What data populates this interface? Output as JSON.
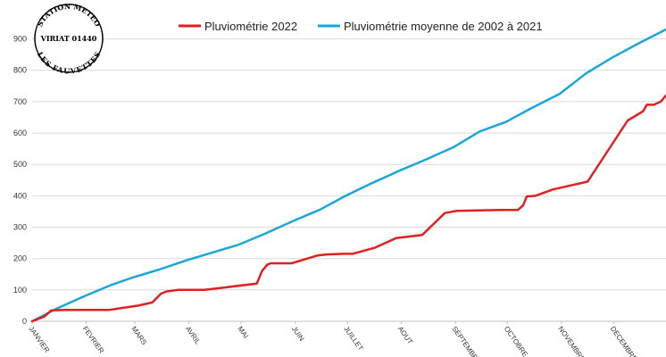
{
  "chart_data": {
    "type": "line",
    "title": "",
    "xlabel": "",
    "ylabel": "",
    "x_ticks": [
      "JANVIER",
      "FEVRIER",
      "MARS",
      "AVRIL",
      "MAI",
      "JUIN",
      "JUILLET",
      "AOUT",
      "SEPTEMBRE",
      "OCTOBRE",
      "NOVEMBRE",
      "DECEMBRE"
    ],
    "ylim": [
      0,
      950
    ],
    "yticks": [
      0,
      100,
      200,
      300,
      400,
      500,
      600,
      700,
      800,
      900
    ],
    "grid": "horizontal",
    "legend_position": "top",
    "series": [
      {
        "name": "Pluviométrie 2022",
        "color": "#e02020",
        "x": [
          1,
          8,
          12,
          20,
          45,
          62,
          70,
          75,
          78,
          85,
          92,
          100,
          130,
          133,
          136,
          138,
          150,
          165,
          170,
          180,
          185,
          198,
          210,
          225,
          238,
          245,
          270,
          280,
          283,
          285,
          290,
          300,
          320,
          343,
          349,
          352,
          354,
          358,
          362,
          365
        ],
        "y": [
          0,
          15,
          35,
          36,
          36,
          50,
          60,
          88,
          95,
          100,
          100,
          100,
          120,
          160,
          180,
          185,
          185,
          210,
          213,
          215,
          215,
          235,
          265,
          275,
          345,
          352,
          355,
          355,
          370,
          398,
          400,
          420,
          445,
          640,
          660,
          670,
          690,
          690,
          700,
          720
        ]
      },
      {
        "name": "Pluviométrie moyenne de 2002 à 2021",
        "color": "#1ba6d9",
        "x": [
          1,
          15,
          31,
          46,
          59,
          74,
          90,
          105,
          120,
          135,
          151,
          166,
          181,
          196,
          212,
          227,
          243,
          258,
          273,
          288,
          304,
          319,
          334,
          349,
          365
        ],
        "y": [
          0,
          40,
          80,
          115,
          140,
          165,
          195,
          220,
          245,
          280,
          320,
          355,
          400,
          440,
          480,
          515,
          555,
          605,
          635,
          680,
          725,
          790,
          840,
          885,
          930
        ]
      }
    ]
  },
  "stamp": {
    "line1": "STATION METEO",
    "line2": "VIRIAT 01440",
    "line3": "LES FAUVETTES"
  }
}
